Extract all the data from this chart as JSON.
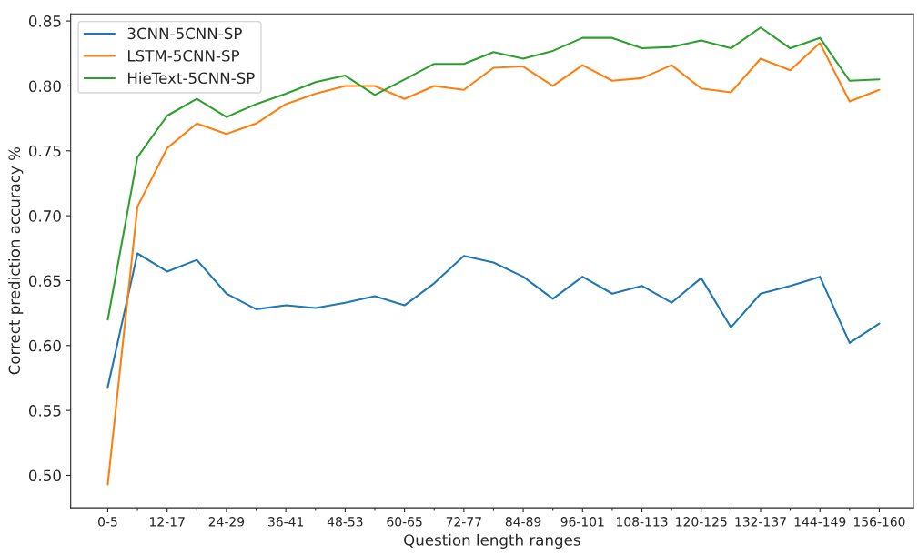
{
  "chart_data": {
    "type": "line",
    "xlabel": "Question length ranges",
    "ylabel": "Correct prediction accuracy %",
    "categories": [
      "0-5",
      null,
      "12-17",
      null,
      "24-29",
      null,
      "36-41",
      null,
      "48-53",
      null,
      "60-65",
      null,
      "72-77",
      null,
      "84-89",
      null,
      "96-101",
      null,
      "108-113",
      null,
      "120-125",
      null,
      "132-137",
      null,
      "144-149",
      null,
      "156-160"
    ],
    "series": [
      {
        "name": "3CNN-5CNN-SP",
        "color": "#1f77b4",
        "values": [
          0.568,
          0.671,
          0.657,
          0.666,
          0.64,
          0.628,
          0.631,
          0.629,
          0.633,
          0.638,
          0.631,
          0.648,
          0.669,
          0.664,
          0.653,
          0.636,
          0.653,
          0.64,
          0.646,
          0.633,
          0.652,
          0.614,
          0.64,
          0.646,
          0.653,
          0.602,
          0.617
        ]
      },
      {
        "name": "LSTM-5CNN-SP",
        "color": "#ff7f0e",
        "values": [
          0.493,
          0.707,
          0.752,
          0.771,
          0.763,
          0.771,
          0.786,
          0.794,
          0.8,
          0.8,
          0.79,
          0.8,
          0.797,
          0.814,
          0.815,
          0.8,
          0.816,
          0.804,
          0.806,
          0.816,
          0.798,
          0.795,
          0.821,
          0.812,
          0.833,
          0.788,
          0.797
        ]
      },
      {
        "name": "HieText-5CNN-SP",
        "color": "#2ca02c",
        "values": [
          0.62,
          0.745,
          0.777,
          0.79,
          0.776,
          0.786,
          0.794,
          0.803,
          0.808,
          0.793,
          0.805,
          0.817,
          0.817,
          0.826,
          0.821,
          0.827,
          0.837,
          0.837,
          0.829,
          0.83,
          0.835,
          0.829,
          0.845,
          0.829,
          0.837,
          0.804,
          0.805
        ]
      }
    ],
    "ylim": [
      0.475,
      0.8555
    ],
    "yticks": [
      {
        "value": 0.5,
        "label": "0.50"
      },
      {
        "value": 0.55,
        "label": "0.55"
      },
      {
        "value": 0.6,
        "label": "0.60"
      },
      {
        "value": 0.65,
        "label": "0.65"
      },
      {
        "value": 0.7,
        "label": "0.70"
      },
      {
        "value": 0.75,
        "label": "0.75"
      },
      {
        "value": 0.8,
        "label": "0.80"
      },
      {
        "value": 0.85,
        "label": "0.85"
      }
    ],
    "legend": "top left",
    "grid": false,
    "marker": "none",
    "line_style": "solid"
  }
}
